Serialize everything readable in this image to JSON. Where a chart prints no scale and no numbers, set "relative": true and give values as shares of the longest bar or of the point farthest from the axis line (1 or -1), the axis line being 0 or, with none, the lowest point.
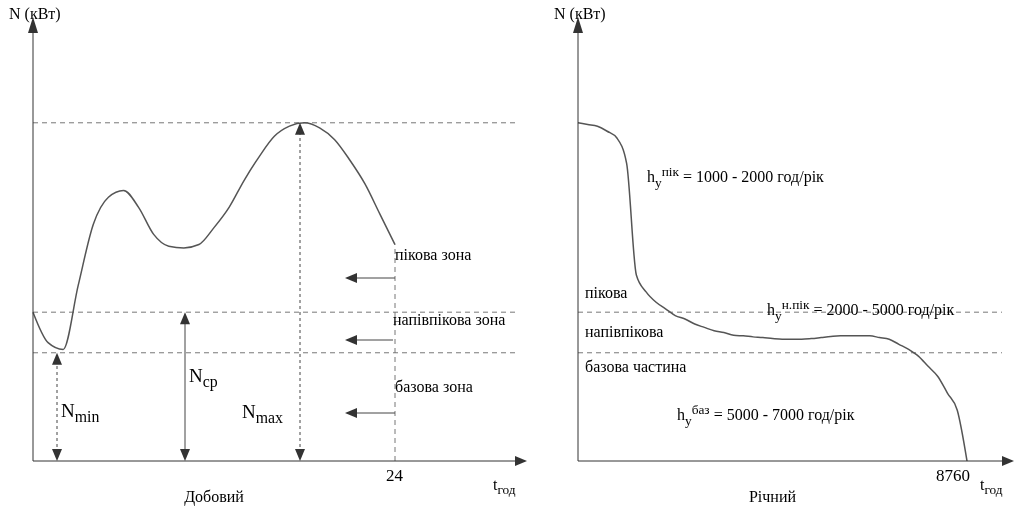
{
  "chart_data": [
    {
      "type": "line",
      "title": "Добовий",
      "xlabel": "t$_{год}$",
      "ylabel": "N (кВт)",
      "relative": true,
      "categories": [
        null,
        null,
        null,
        null,
        null,
        null,
        null,
        null,
        null,
        null,
        null,
        null,
        null,
        null,
        null,
        null,
        null,
        null,
        null,
        null,
        null,
        null,
        null,
        null,
        null
      ],
      "series": [
        {
          "color": "#555555",
          "values": [
            0.44,
            0.35,
            0.33,
            0.52,
            0.7,
            0.78,
            0.8,
            0.75,
            0.67,
            0.635,
            0.63,
            0.64,
            0.69,
            0.75,
            0.83,
            0.9,
            0.96,
            0.99,
            1.0,
            0.985,
            0.95,
            0.89,
            0.82,
            0.73,
            0.64
          ]
        }
      ],
      "ref_lines": [
        {
          "axis": "y",
          "value": 1.0,
          "color": "#777777",
          "line_style": "dashed"
        },
        {
          "axis": "y",
          "value": 0.44,
          "color": "#777777",
          "line_style": "dashed"
        },
        {
          "axis": "y",
          "value": 0.32,
          "color": "#777777",
          "line_style": "dashed"
        }
      ],
      "annotations": [
        {
          "text": "N$_{min}$",
          "y": 0.32
        },
        {
          "text": "N$_{ср}$",
          "y": 0.44
        },
        "N$_{max}$",
        "24",
        "пікова зона",
        "напівпікова зона",
        "базова зона"
      ]
    },
    {
      "type": "line",
      "title": "Річний",
      "xlabel": "t$_{год}$",
      "ylabel": "N (кВт)",
      "relative": true,
      "categories": [
        null,
        null,
        null,
        null,
        null,
        null,
        null,
        null,
        null,
        null,
        null,
        null,
        null,
        null,
        null,
        null,
        null,
        null,
        null,
        null,
        null,
        null,
        null,
        null,
        null,
        null,
        null,
        null,
        null,
        null,
        null,
        null,
        null,
        null,
        null,
        null,
        null,
        null,
        null,
        null,
        null
      ],
      "series": [
        {
          "color": "#555555",
          "values": [
            1.0,
            0.995,
            0.99,
            0.975,
            0.955,
            0.88,
            0.55,
            0.5,
            0.47,
            0.45,
            0.43,
            0.42,
            0.405,
            0.395,
            0.385,
            0.38,
            0.372,
            0.37,
            0.367,
            0.365,
            0.362,
            0.36,
            0.36,
            0.36,
            0.362,
            0.365,
            0.368,
            0.37,
            0.37,
            0.37,
            0.37,
            0.365,
            0.36,
            0.345,
            0.33,
            0.31,
            0.28,
            0.25,
            0.2,
            0.15,
            0
          ]
        }
      ],
      "ref_lines": [
        {
          "axis": "y",
          "value": 0.44,
          "color": "#777777",
          "line_style": "dashed"
        },
        {
          "axis": "y",
          "value": 0.32,
          "color": "#777777",
          "line_style": "dashed"
        }
      ],
      "annotations": [
        "8760",
        "пікова",
        "напівпікова",
        "базова частина",
        "h$_{у}$$^{пік}$ = 1000 - 2000 год/рік",
        "h$_{у}$$^{н.пік}$ = 2000 - 5000 год/рік",
        "h$_{у}$$^{баз}$ = 5000 - 7000 год/рік"
      ]
    }
  ]
}
